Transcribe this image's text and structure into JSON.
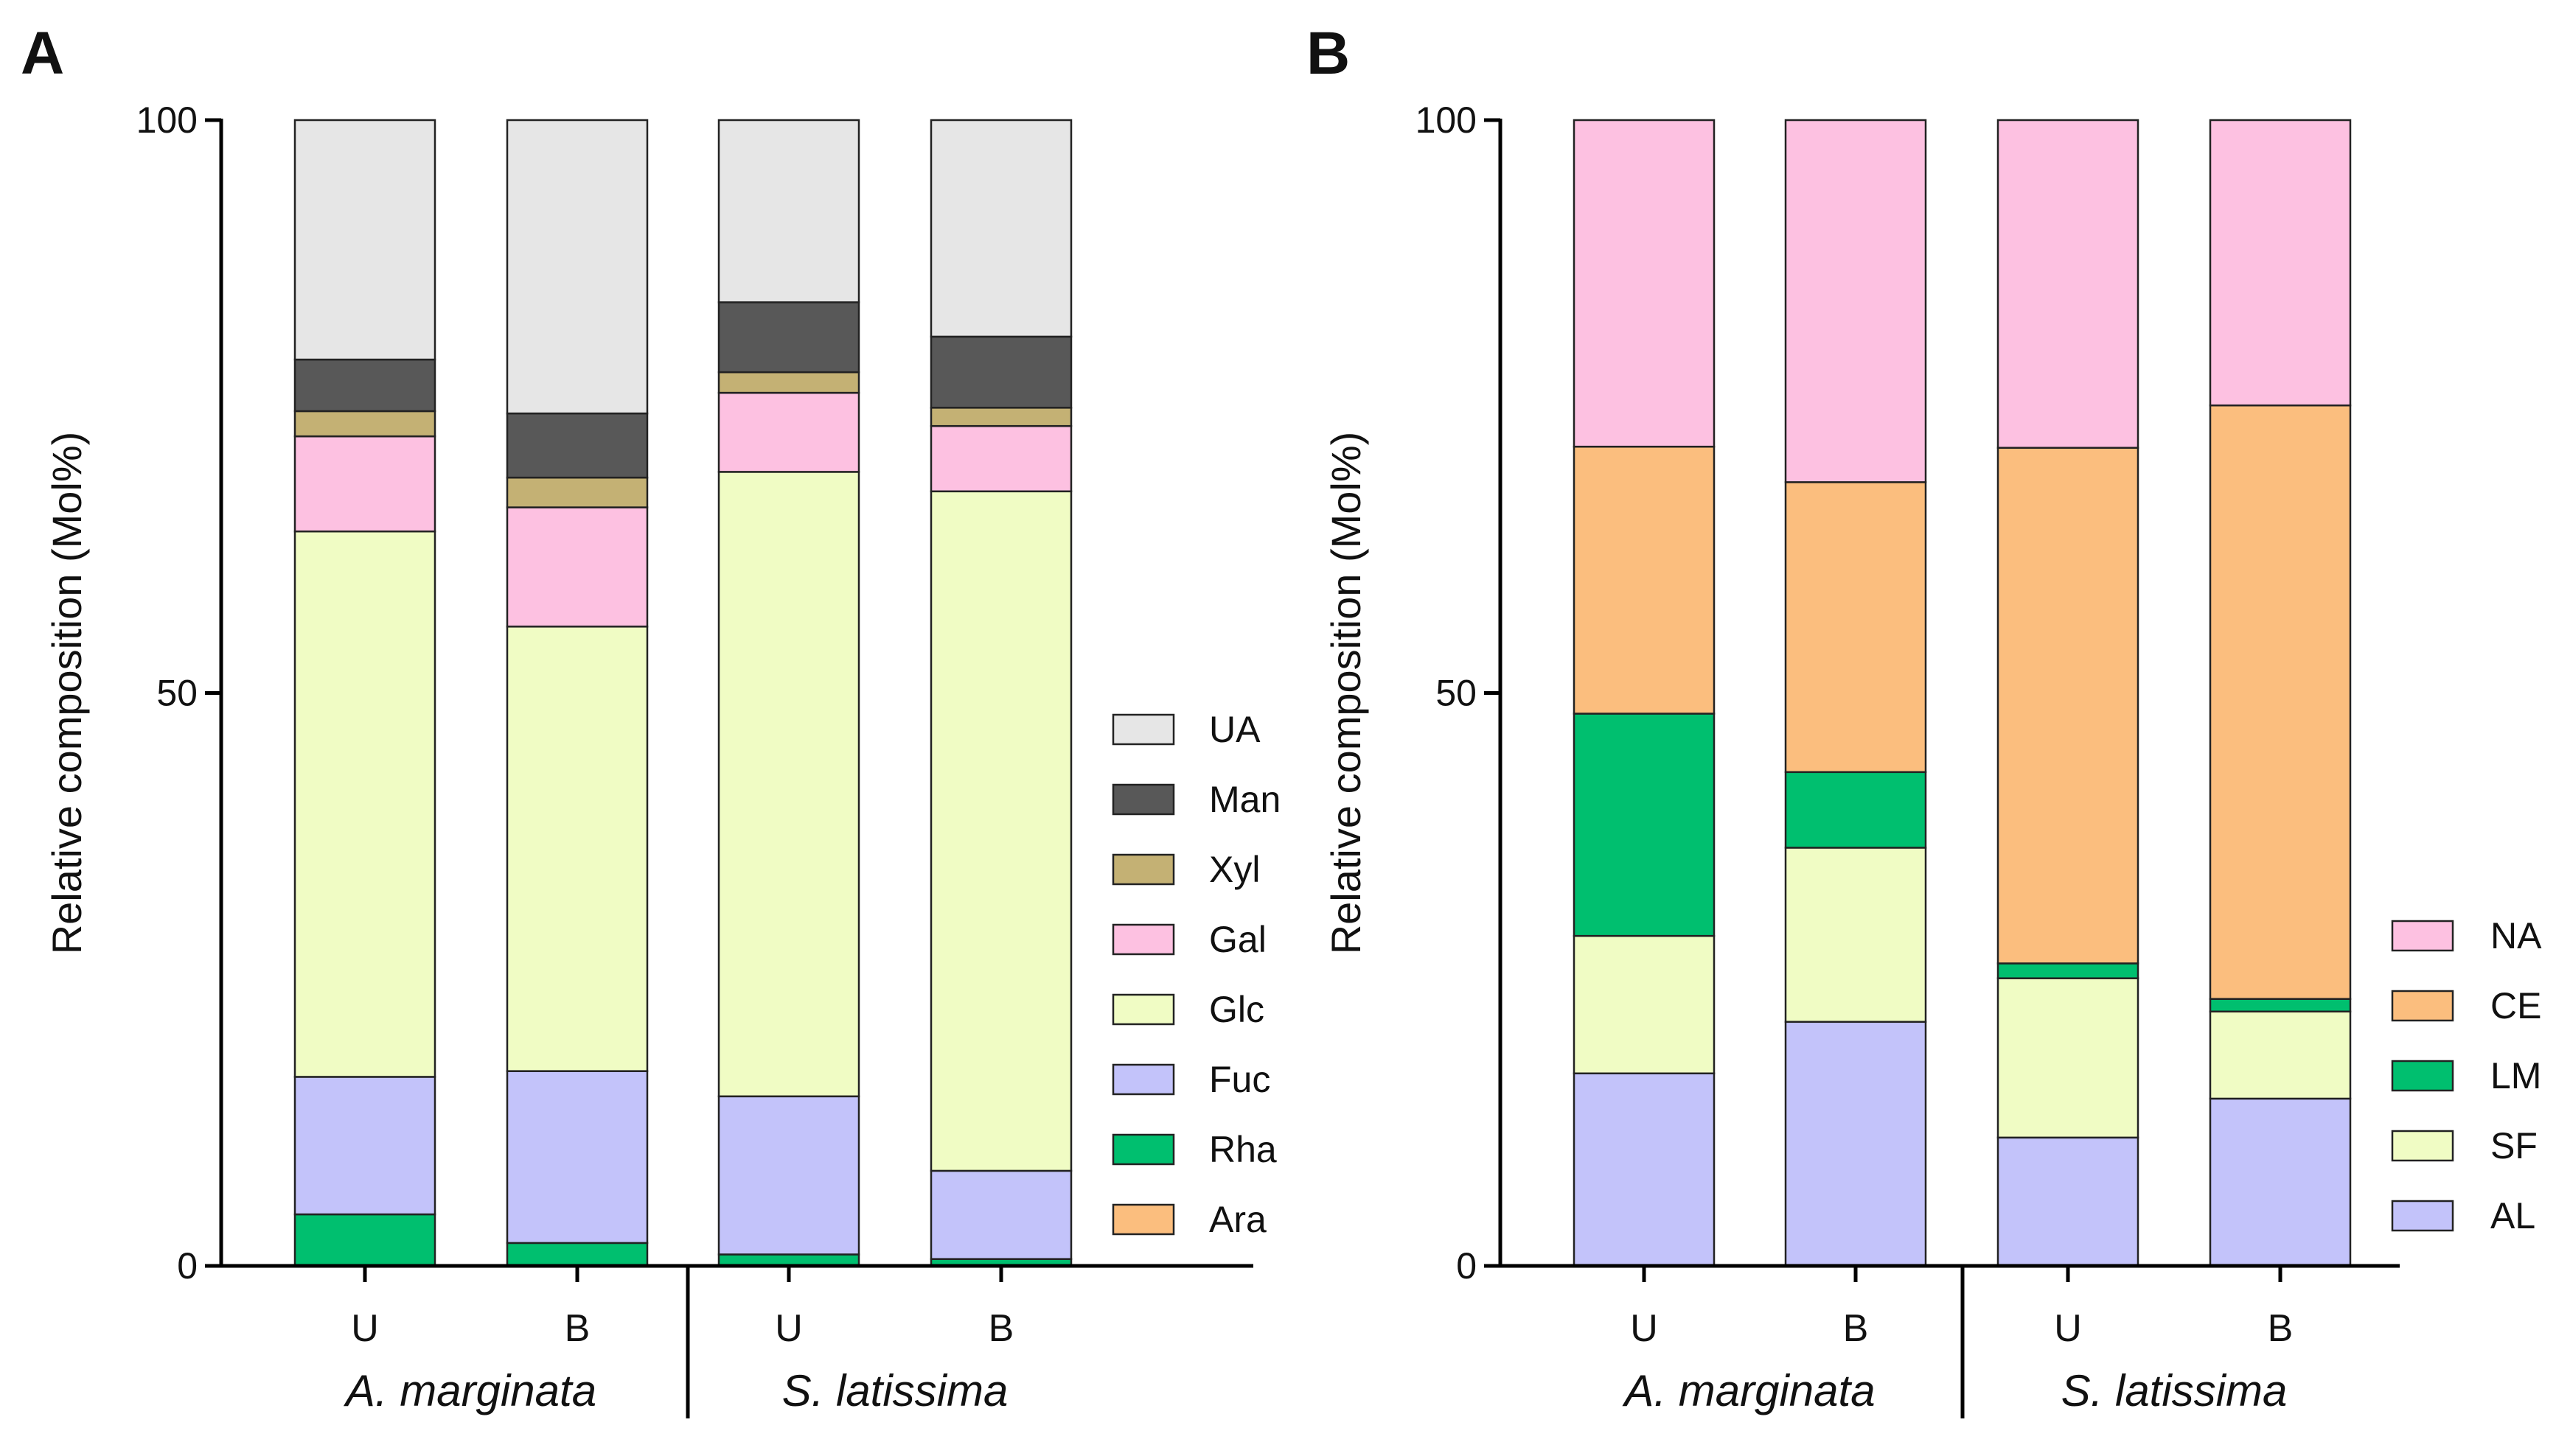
{
  "figure": {
    "panels": [
      "A",
      "B"
    ]
  },
  "chart_data": [
    {
      "panel": "A",
      "type": "bar",
      "stacked": true,
      "ylabel": "Relative composition (Mol%)",
      "ylim": [
        0,
        100
      ],
      "yticks": [
        0,
        50,
        100
      ],
      "categories": [
        "U",
        "B",
        "U",
        "B"
      ],
      "groups": [
        {
          "label": "A. marginata",
          "categories": [
            0,
            1
          ]
        },
        {
          "label": "S. latissima",
          "categories": [
            2,
            3
          ]
        }
      ],
      "legend_position": "right",
      "series": [
        {
          "name": "Ara",
          "color": "#FBBE7E",
          "values": [
            0,
            0,
            0,
            0
          ]
        },
        {
          "name": "Rha",
          "color": "#00BF6F",
          "values": [
            4.5,
            2.0,
            1.0,
            0.6
          ]
        },
        {
          "name": "Fuc",
          "color": "#C3C3FA",
          "values": [
            12.0,
            15.0,
            13.8,
            7.7
          ]
        },
        {
          "name": "Glc",
          "color": "#F0FCC4",
          "values": [
            47.6,
            38.8,
            54.5,
            59.3
          ]
        },
        {
          "name": "Gal",
          "color": "#FDC1E1",
          "values": [
            8.3,
            10.4,
            6.9,
            5.7
          ]
        },
        {
          "name": "Xyl",
          "color": "#C4B174",
          "values": [
            2.2,
            2.6,
            1.8,
            1.6
          ]
        },
        {
          "name": "Man",
          "color": "#585858",
          "values": [
            4.5,
            5.6,
            6.1,
            6.2
          ]
        },
        {
          "name": "UA",
          "color": "#E6E6E6",
          "values": [
            20.9,
            25.6,
            15.9,
            18.9
          ]
        }
      ]
    },
    {
      "panel": "B",
      "type": "bar",
      "stacked": true,
      "ylabel": "Relative composition (Mol%)",
      "ylim": [
        0,
        100
      ],
      "yticks": [
        0,
        50,
        100
      ],
      "categories": [
        "U",
        "B",
        "U",
        "B"
      ],
      "groups": [
        {
          "label": "A. marginata",
          "categories": [
            0,
            1
          ]
        },
        {
          "label": "S. latissima",
          "categories": [
            2,
            3
          ]
        }
      ],
      "legend_position": "right",
      "series": [
        {
          "name": "AL",
          "color": "#C3C3FA",
          "values": [
            16.8,
            21.3,
            11.2,
            14.6
          ]
        },
        {
          "name": "SF",
          "color": "#F0FCC4",
          "values": [
            12.0,
            15.2,
            13.9,
            7.6
          ]
        },
        {
          "name": "LM",
          "color": "#00BF6F",
          "values": [
            19.4,
            6.6,
            1.3,
            1.1
          ]
        },
        {
          "name": "CE",
          "color": "#FBBE7E",
          "values": [
            23.3,
            25.3,
            45.0,
            51.8
          ]
        },
        {
          "name": "NA",
          "color": "#FDC1E1",
          "values": [
            28.5,
            31.6,
            28.6,
            24.9
          ]
        }
      ]
    }
  ]
}
